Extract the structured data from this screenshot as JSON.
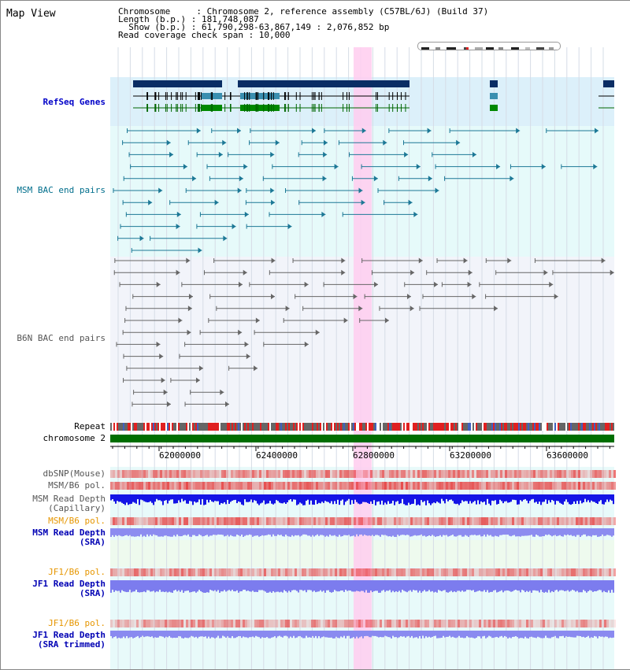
{
  "title": "Map View",
  "header": {
    "line1": "Chromosome     : Chromosome 2, reference assembly (C57BL/6J) (Build 37)",
    "line2": "Length (b.p.) : 181,748,087",
    "line3": "  Show (b.p.) : 61,790,298-63,867,149 : 2,076,852 bp",
    "line4": "Read coverage check span : 10,000"
  },
  "tracks": {
    "refseq": "RefSeq Genes",
    "msm_bac": "MSM BAC end pairs",
    "b6n_bac": "B6N BAC end pairs",
    "repeat": "Repeat",
    "chromosome": "chromosome 2",
    "dbsnp": "dbSNP(Mouse)",
    "msm_pol": "MSM/B6 pol.",
    "msm_depth_cap_1": "MSM Read Depth",
    "msm_depth_cap_2": "(Capillary)",
    "msm_pol_sra": "MSM/B6 pol.",
    "msm_depth_sra_1": "MSM Read Depth",
    "msm_depth_sra_2": "(SRA)",
    "jf1_pol": "JF1/B6 pol.",
    "jf1_depth_1": "JF1 Read Depth",
    "jf1_depth_2": "(SRA)",
    "jf1_pol_trim": "JF1/B6 pol.",
    "jf1_trim_1": "JF1 Read Depth",
    "jf1_trim_2": "(SRA trimmed)"
  },
  "axis": {
    "ticks": [
      "62000000",
      "62400000",
      "62800000",
      "63200000",
      "63600000"
    ]
  },
  "colors": {
    "refseq_label": "#0000c8",
    "msm_label": "#006e8c",
    "gray_label": "#555555",
    "orange_label": "#e69600",
    "blue_label": "#0000b4",
    "highlight": "#ffccee"
  }
}
